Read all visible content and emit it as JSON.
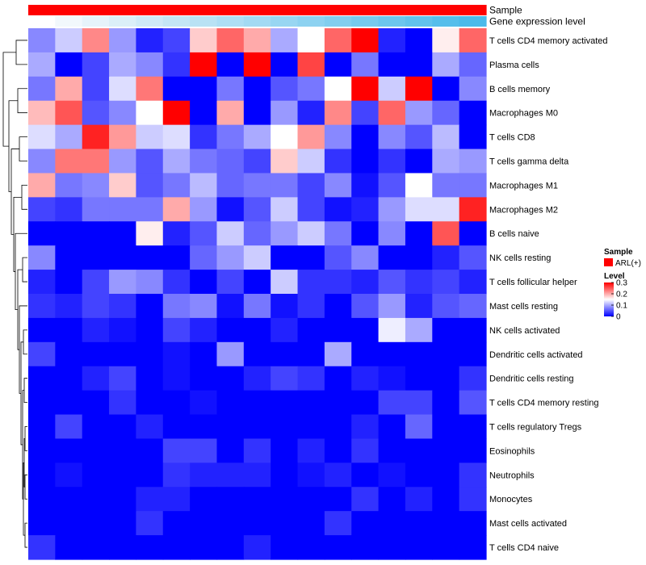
{
  "chart_data": {
    "type": "heatmap",
    "title": "",
    "annotations": [
      {
        "name": "Sample",
        "colors": [
          "#ff0000",
          "#ff0000",
          "#ff0000",
          "#ff0000",
          "#ff0000",
          "#ff0000",
          "#ff0000",
          "#ff0000",
          "#ff0000",
          "#ff0000",
          "#ff0000",
          "#ff0000",
          "#ff0000",
          "#ff0000",
          "#ff0000",
          "#ff0000",
          "#ff0000"
        ]
      },
      {
        "name": "Gene expression level",
        "colors": [
          "#ffffff",
          "#f2f8fc",
          "#e6f3fa",
          "#dbeff8",
          "#cfeaf7",
          "#c4e6f5",
          "#b9e2f4",
          "#aedef4",
          "#a3daf3",
          "#98d6f2",
          "#8dd2f1",
          "#82ceef",
          "#77caee",
          "#6cc6ed",
          "#61c2ec",
          "#56beeb",
          "#4bbaea"
        ]
      }
    ],
    "rows": [
      "T cells CD4 memory activated",
      "Plasma cells",
      "B cells memory",
      "Macrophages M0",
      "T cells CD8",
      "T cells gamma delta",
      "Macrophages M1",
      "Macrophages M2",
      "B cells naive",
      "NK cells resting",
      "T cells follicular helper",
      "Mast cells resting",
      "NK cells activated",
      "Dendritic cells activated",
      "Dendritic cells resting",
      "T cells CD4 memory resting",
      "T cells regulatory  Tregs",
      "Eosinophils",
      "Neutrophils",
      "Monocytes",
      "Mast cells activated",
      "T cells CD4 naive"
    ],
    "values": [
      [
        0.08,
        0.12,
        0.22,
        0.09,
        0.02,
        0.04,
        0.18,
        0.24,
        0.2,
        0.1,
        0.15,
        0.24,
        0.31,
        0.02,
        0.0,
        0.16,
        0.24
      ],
      [
        0.1,
        0.0,
        0.04,
        0.1,
        0.08,
        0.03,
        0.31,
        0.0,
        0.31,
        0.0,
        0.26,
        0.0,
        0.07,
        0.0,
        0.0,
        0.1,
        0.06
      ],
      [
        0.07,
        0.2,
        0.04,
        0.13,
        0.23,
        0.0,
        0.0,
        0.07,
        0.0,
        0.05,
        0.07,
        0.15,
        0.31,
        0.12,
        0.31,
        0.0,
        0.08
      ],
      [
        0.19,
        0.25,
        0.05,
        0.08,
        0.15,
        0.31,
        0.0,
        0.2,
        0.0,
        0.09,
        0.02,
        0.22,
        0.04,
        0.24,
        0.09,
        0.06,
        0.0
      ],
      [
        0.13,
        0.1,
        0.28,
        0.21,
        0.12,
        0.13,
        0.03,
        0.07,
        0.1,
        0.15,
        0.21,
        0.08,
        0.0,
        0.08,
        0.05,
        0.11,
        0.0
      ],
      [
        0.08,
        0.23,
        0.23,
        0.09,
        0.05,
        0.1,
        0.07,
        0.06,
        0.04,
        0.18,
        0.12,
        0.03,
        0.0,
        0.03,
        0.0,
        0.1,
        0.09
      ],
      [
        0.2,
        0.07,
        0.08,
        0.18,
        0.05,
        0.07,
        0.11,
        0.06,
        0.07,
        0.07,
        0.04,
        0.08,
        0.01,
        0.05,
        0.15,
        0.07,
        0.07
      ],
      [
        0.04,
        0.03,
        0.07,
        0.07,
        0.07,
        0.2,
        0.09,
        0.01,
        0.05,
        0.12,
        0.04,
        0.01,
        0.02,
        0.09,
        0.13,
        0.13,
        0.28
      ],
      [
        0.0,
        0.0,
        0.0,
        0.0,
        0.16,
        0.02,
        0.05,
        0.12,
        0.06,
        0.09,
        0.12,
        0.07,
        0.0,
        0.08,
        0.0,
        0.25,
        0.0
      ],
      [
        0.08,
        0.0,
        0.0,
        0.0,
        0.0,
        0.0,
        0.06,
        0.09,
        0.12,
        0.0,
        0.0,
        0.05,
        0.08,
        0.0,
        0.0,
        0.02,
        0.05
      ],
      [
        0.02,
        0.0,
        0.04,
        0.09,
        0.08,
        0.03,
        0.0,
        0.04,
        0.0,
        0.12,
        0.03,
        0.03,
        0.02,
        0.05,
        0.03,
        0.04,
        0.02
      ],
      [
        0.03,
        0.02,
        0.04,
        0.03,
        0.0,
        0.07,
        0.08,
        0.01,
        0.07,
        0.01,
        0.03,
        0.0,
        0.05,
        0.09,
        0.02,
        0.05,
        0.06
      ],
      [
        0.0,
        0.0,
        0.02,
        0.01,
        0.0,
        0.04,
        0.02,
        0.0,
        0.0,
        0.02,
        0.0,
        0.0,
        0.0,
        0.14,
        0.1,
        0.0,
        0.0
      ],
      [
        0.04,
        0.0,
        0.0,
        0.0,
        0.0,
        0.01,
        0.0,
        0.09,
        0.0,
        0.0,
        0.0,
        0.1,
        0.0,
        0.0,
        0.0,
        0.0,
        0.0
      ],
      [
        0.0,
        0.0,
        0.02,
        0.04,
        0.0,
        0.01,
        0.0,
        0.0,
        0.02,
        0.04,
        0.03,
        0.0,
        0.02,
        0.01,
        0.0,
        0.0,
        0.03
      ],
      [
        0.0,
        0.0,
        0.0,
        0.03,
        0.0,
        0.0,
        0.01,
        0.0,
        0.0,
        0.0,
        0.0,
        0.0,
        0.0,
        0.04,
        0.04,
        0.0,
        0.05
      ],
      [
        0.0,
        0.04,
        0.0,
        0.0,
        0.02,
        0.0,
        0.0,
        0.0,
        0.0,
        0.0,
        0.0,
        0.0,
        0.02,
        0.0,
        0.06,
        0.0,
        0.0
      ],
      [
        0.0,
        0.0,
        0.0,
        0.0,
        0.0,
        0.04,
        0.04,
        0.0,
        0.03,
        0.0,
        0.02,
        0.0,
        0.03,
        0.0,
        0.0,
        0.0,
        0.0
      ],
      [
        0.0,
        0.01,
        0.0,
        0.0,
        0.0,
        0.03,
        0.02,
        0.02,
        0.02,
        0.0,
        0.01,
        0.02,
        0.0,
        0.01,
        0.0,
        0.0,
        0.03
      ],
      [
        0.0,
        0.0,
        0.0,
        0.0,
        0.02,
        0.02,
        0.0,
        0.0,
        0.0,
        0.0,
        0.0,
        0.0,
        0.03,
        0.0,
        0.02,
        0.0,
        0.03
      ],
      [
        0.0,
        0.0,
        0.0,
        0.0,
        0.03,
        0.0,
        0.0,
        0.0,
        0.0,
        0.0,
        0.0,
        0.03,
        0.0,
        0.0,
        0.0,
        0.0,
        0.0
      ],
      [
        0.03,
        0.0,
        0.0,
        0.0,
        0.0,
        0.0,
        0.0,
        0.0,
        0.02,
        0.0,
        0.0,
        0.0,
        0.0,
        0.0,
        0.0,
        0.0,
        0.0
      ]
    ],
    "color_scale": {
      "min": 0,
      "max": 0.3,
      "low": "#0000ff",
      "mid": "#ffffff",
      "high": "#ff0000",
      "mid_value": 0.15
    },
    "legend": {
      "sample_title": "Sample",
      "sample_entry": "ARL(+)",
      "sample_color": "#ff0000",
      "level_title": "Level",
      "ticks": [
        {
          "value": 0.3,
          "label": "0.3"
        },
        {
          "value": 0.2,
          "label": "0.2"
        },
        {
          "value": 0.1,
          "label": "0.1"
        },
        {
          "value": 0.0,
          "label": "0"
        }
      ]
    }
  }
}
